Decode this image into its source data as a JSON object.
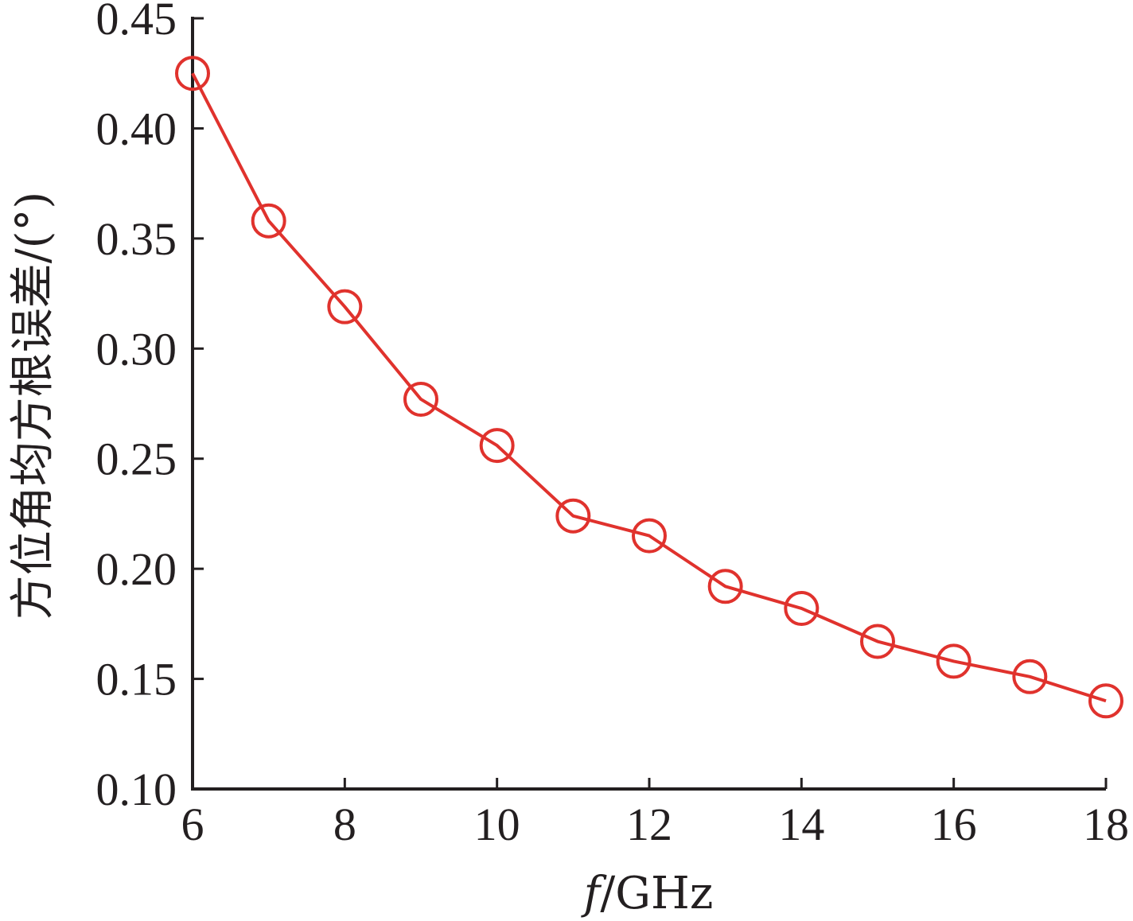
{
  "chart_data": {
    "type": "line",
    "title": "",
    "xlabel_var": "f",
    "xlabel_unit": "/GHz",
    "ylabel": "方位角均方根误差/(°)",
    "xlim": [
      6,
      18
    ],
    "ylim": [
      0.1,
      0.45
    ],
    "xticks": [
      "6",
      "8",
      "10",
      "12",
      "14",
      "16",
      "18"
    ],
    "yticks": [
      "0.10",
      "0.15",
      "0.20",
      "0.25",
      "0.30",
      "0.35",
      "0.40",
      "0.45"
    ],
    "grid": false,
    "series": [
      {
        "color": "#e0322d",
        "marker": "circle-open",
        "x": [
          6,
          7,
          8,
          9,
          10,
          11,
          12,
          13,
          14,
          15,
          16,
          17,
          18
        ],
        "y": [
          0.425,
          0.358,
          0.319,
          0.277,
          0.256,
          0.224,
          0.215,
          0.192,
          0.182,
          0.167,
          0.158,
          0.151,
          0.14
        ]
      }
    ]
  }
}
